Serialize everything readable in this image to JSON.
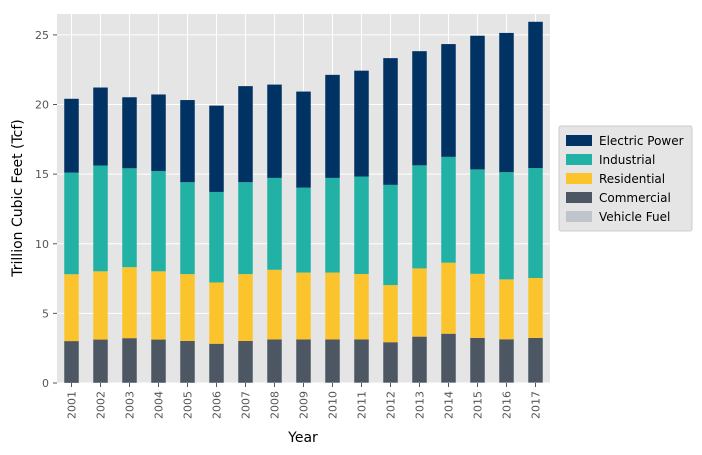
{
  "chart_data": {
    "type": "bar",
    "stacked": true,
    "title": "",
    "xlabel": "Year",
    "ylabel": "Trillion Cubic Feet (Tcf)",
    "ylim": [
      0,
      26.5
    ],
    "yticks": [
      0,
      5,
      10,
      15,
      20,
      25
    ],
    "grid": true,
    "legend_position": "right",
    "categories": [
      "2001",
      "2002",
      "2003",
      "2004",
      "2005",
      "2006",
      "2007",
      "2008",
      "2009",
      "2010",
      "2011",
      "2012",
      "2013",
      "2014",
      "2015",
      "2016",
      "2017"
    ],
    "series": [
      {
        "name": "Vehicle Fuel",
        "color": "#c0c4cd",
        "values": [
          0.01,
          0.02,
          0.02,
          0.02,
          0.02,
          0.02,
          0.02,
          0.03,
          0.03,
          0.03,
          0.03,
          0.03,
          0.03,
          0.04,
          0.04,
          0.04,
          0.04
        ]
      },
      {
        "name": "Commercial",
        "color": "#4d5764",
        "values": [
          3.0,
          3.1,
          3.2,
          3.1,
          3.0,
          2.8,
          3.0,
          3.1,
          3.1,
          3.1,
          3.1,
          2.9,
          3.3,
          3.5,
          3.2,
          3.1,
          3.2
        ]
      },
      {
        "name": "Residential",
        "color": "#fcc42c",
        "values": [
          4.8,
          4.9,
          5.1,
          4.9,
          4.8,
          4.4,
          4.8,
          5.0,
          4.8,
          4.8,
          4.7,
          4.1,
          4.9,
          5.1,
          4.6,
          4.3,
          4.3
        ]
      },
      {
        "name": "Industrial",
        "color": "#21b2a5",
        "values": [
          7.3,
          7.6,
          7.1,
          7.2,
          6.6,
          6.5,
          6.6,
          6.6,
          6.1,
          6.8,
          7.0,
          7.2,
          7.4,
          7.6,
          7.5,
          7.7,
          7.9
        ]
      },
      {
        "name": "Electric Power",
        "color": "#003264",
        "values": [
          5.3,
          5.6,
          5.1,
          5.5,
          5.9,
          6.2,
          6.9,
          6.7,
          6.9,
          7.4,
          7.6,
          9.1,
          8.2,
          8.1,
          9.6,
          10.0,
          10.5
        ]
      }
    ],
    "legend_order": [
      "Electric Power",
      "Industrial",
      "Residential",
      "Commercial",
      "Vehicle Fuel"
    ]
  }
}
